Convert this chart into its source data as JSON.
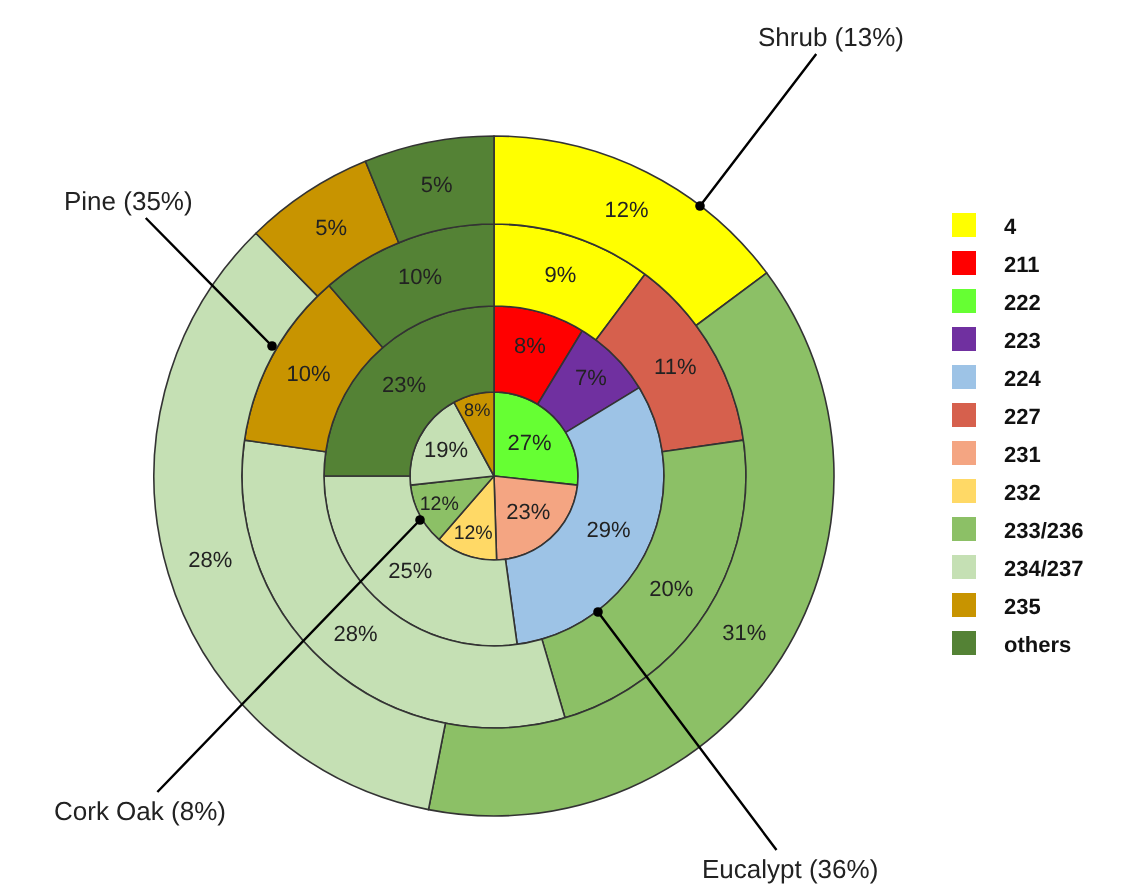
{
  "chart_data": {
    "type": "donut",
    "categories": [
      "4",
      "211",
      "222",
      "223",
      "224",
      "227",
      "231",
      "232",
      "233/236",
      "234/237",
      "235",
      "others"
    ],
    "colors": [
      "#ffff00",
      "#ff0000",
      "#66ff33",
      "#7030a0",
      "#9dc3e6",
      "#d6604d",
      "#f4a582",
      "#ffd966",
      "#8cc066",
      "#c5e0b4",
      "#c89400",
      "#548235"
    ],
    "series": [
      {
        "values": [
          null,
          null,
          27,
          null,
          null,
          null,
          23,
          12,
          12,
          19,
          8,
          null
        ],
        "value_labels": [
          null,
          null,
          "27%",
          null,
          null,
          null,
          "23%",
          "12%",
          "12%",
          "19%",
          "8%",
          null
        ]
      },
      {
        "values": [
          null,
          8,
          null,
          7,
          29,
          null,
          null,
          null,
          null,
          25,
          null,
          23
        ],
        "value_labels": [
          null,
          "8%",
          null,
          "7%",
          "29%",
          null,
          null,
          null,
          null,
          "25%",
          null,
          "23%"
        ]
      },
      {
        "values": [
          9,
          null,
          null,
          null,
          null,
          11,
          null,
          null,
          20,
          28,
          10,
          10
        ],
        "value_labels": [
          "9%",
          null,
          null,
          null,
          null,
          "11%",
          null,
          null,
          "20%",
          "28%",
          "10%",
          "10%"
        ]
      },
      {
        "values": [
          12,
          null,
          null,
          null,
          null,
          null,
          null,
          null,
          31,
          28,
          5,
          5
        ],
        "value_labels": [
          "12%",
          null,
          null,
          null,
          null,
          null,
          null,
          null,
          "31%",
          "28%",
          "5%",
          "5%"
        ]
      }
    ],
    "annotations": [
      "Shrub (13%)",
      "Pine (35%)",
      "Cork Oak (8%)",
      "Eucalypt (36%)"
    ],
    "legend": "right"
  }
}
